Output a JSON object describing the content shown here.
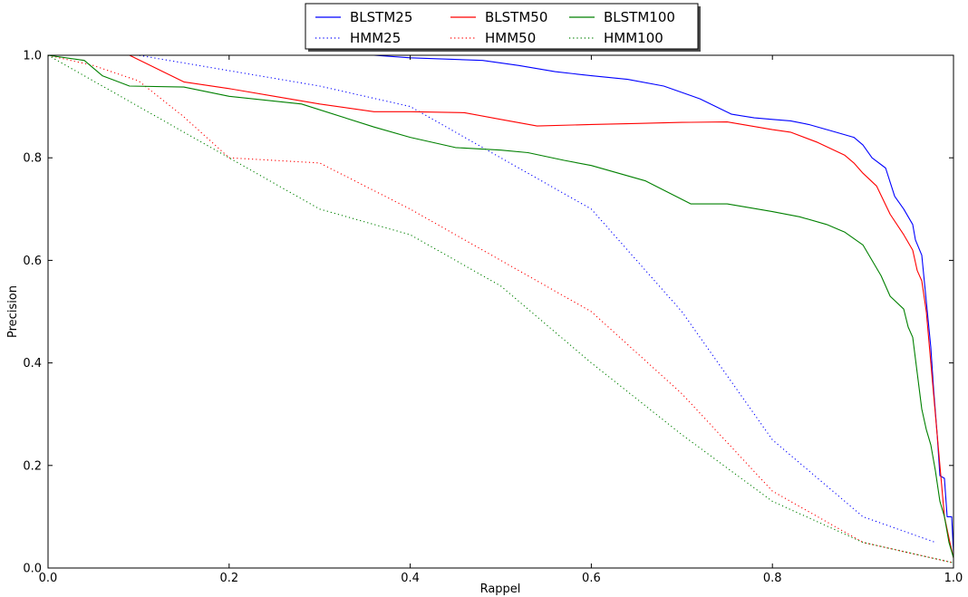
{
  "chart_data": {
    "type": "line",
    "xlabel": "Rappel",
    "ylabel": "Precision",
    "xlim": [
      0.0,
      1.0
    ],
    "ylim": [
      0.0,
      1.0
    ],
    "xticks": [
      "0.0",
      "0.2",
      "0.4",
      "0.6",
      "0.8",
      "1.0"
    ],
    "yticks": [
      "0.0",
      "0.2",
      "0.4",
      "0.6",
      "0.8",
      "1.0"
    ],
    "grid": false,
    "legend_position": "top-center",
    "series": [
      {
        "name": "BLSTM25",
        "color": "#0000ff",
        "style": "solid",
        "x": [
          0.0,
          0.09,
          0.36,
          0.4,
          0.48,
          0.52,
          0.56,
          0.6,
          0.64,
          0.68,
          0.72,
          0.755,
          0.78,
          0.8,
          0.82,
          0.84,
          0.87,
          0.89,
          0.9,
          0.91,
          0.925,
          0.935,
          0.945,
          0.955,
          0.958,
          0.965,
          0.97,
          0.975,
          0.978,
          0.982,
          0.985,
          0.99,
          0.993,
          0.995,
          0.998,
          1.0
        ],
        "y": [
          1.0,
          1.0,
          1.0,
          0.995,
          0.99,
          0.98,
          0.968,
          0.96,
          0.953,
          0.94,
          0.915,
          0.885,
          0.878,
          0.875,
          0.872,
          0.865,
          0.85,
          0.84,
          0.825,
          0.8,
          0.78,
          0.725,
          0.7,
          0.67,
          0.64,
          0.61,
          0.52,
          0.43,
          0.35,
          0.26,
          0.18,
          0.175,
          0.1,
          0.1,
          0.1,
          0.03
        ]
      },
      {
        "name": "HMM25",
        "color": "#0000ff",
        "style": "dotted",
        "x": [
          0.0,
          0.1,
          0.2,
          0.3,
          0.4,
          0.5,
          0.6,
          0.7,
          0.8,
          0.9,
          0.98
        ],
        "y": [
          1.0,
          1.0,
          0.97,
          0.94,
          0.9,
          0.8,
          0.7,
          0.5,
          0.25,
          0.1,
          0.05
        ]
      },
      {
        "name": "BLSTM50",
        "color": "#ff0000",
        "style": "solid",
        "x": [
          0.0,
          0.09,
          0.15,
          0.2,
          0.25,
          0.3,
          0.36,
          0.4,
          0.46,
          0.5,
          0.54,
          0.6,
          0.65,
          0.7,
          0.75,
          0.8,
          0.82,
          0.85,
          0.88,
          0.89,
          0.9,
          0.915,
          0.93,
          0.945,
          0.955,
          0.96,
          0.965,
          0.97,
          0.975,
          0.98,
          0.985,
          0.99,
          0.993,
          0.996,
          1.0
        ],
        "y": [
          1.0,
          1.0,
          0.948,
          0.935,
          0.92,
          0.905,
          0.89,
          0.89,
          0.888,
          0.875,
          0.862,
          0.865,
          0.867,
          0.869,
          0.87,
          0.855,
          0.85,
          0.83,
          0.805,
          0.79,
          0.77,
          0.745,
          0.69,
          0.65,
          0.62,
          0.58,
          0.56,
          0.5,
          0.4,
          0.3,
          0.2,
          0.1,
          0.075,
          0.05,
          0.02
        ]
      },
      {
        "name": "HMM50",
        "color": "#ff0000",
        "style": "dotted",
        "x": [
          0.0,
          0.05,
          0.1,
          0.15,
          0.2,
          0.3,
          0.4,
          0.5,
          0.6,
          0.7,
          0.8,
          0.9,
          1.0
        ],
        "y": [
          1.0,
          0.98,
          0.95,
          0.88,
          0.8,
          0.79,
          0.7,
          0.6,
          0.5,
          0.34,
          0.15,
          0.05,
          0.01
        ]
      },
      {
        "name": "BLSTM100",
        "color": "#008000",
        "style": "solid",
        "x": [
          0.0,
          0.04,
          0.06,
          0.09,
          0.15,
          0.2,
          0.28,
          0.36,
          0.4,
          0.45,
          0.5,
          0.53,
          0.57,
          0.6,
          0.66,
          0.71,
          0.75,
          0.8,
          0.83,
          0.86,
          0.88,
          0.9,
          0.91,
          0.92,
          0.93,
          0.945,
          0.95,
          0.955,
          0.96,
          0.965,
          0.97,
          0.975,
          0.98,
          0.985,
          0.99,
          0.995,
          1.0
        ],
        "y": [
          1.0,
          0.99,
          0.96,
          0.94,
          0.938,
          0.92,
          0.905,
          0.86,
          0.84,
          0.82,
          0.815,
          0.81,
          0.795,
          0.785,
          0.755,
          0.71,
          0.71,
          0.695,
          0.685,
          0.67,
          0.655,
          0.63,
          0.6,
          0.57,
          0.53,
          0.505,
          0.47,
          0.45,
          0.38,
          0.31,
          0.27,
          0.24,
          0.19,
          0.13,
          0.1,
          0.05,
          0.02
        ]
      },
      {
        "name": "HMM100",
        "color": "#008000",
        "style": "dotted",
        "x": [
          0.0,
          0.1,
          0.2,
          0.3,
          0.4,
          0.5,
          0.6,
          0.7,
          0.8,
          0.9,
          1.0
        ],
        "y": [
          1.0,
          0.9,
          0.8,
          0.7,
          0.65,
          0.55,
          0.4,
          0.26,
          0.13,
          0.05,
          0.01
        ]
      }
    ]
  }
}
